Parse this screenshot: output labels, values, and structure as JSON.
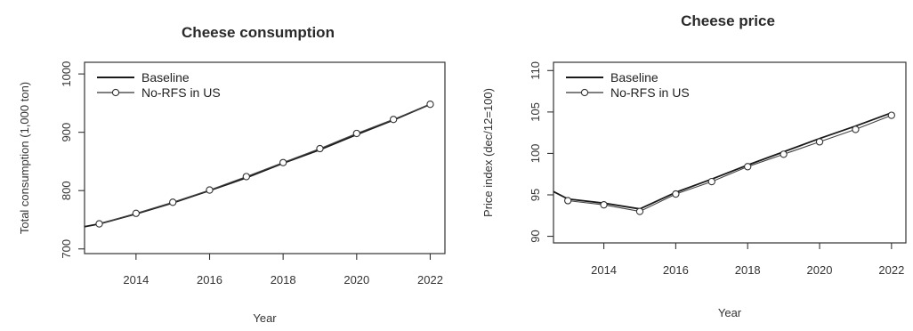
{
  "chart_data": [
    {
      "type": "line",
      "title": "Cheese consumption",
      "xlabel": "Year",
      "ylabel": "Total consumption (1,000 ton)",
      "xlim": [
        2012.6,
        2022.4
      ],
      "ylim": [
        692,
        1020
      ],
      "x_ticks": [
        2014,
        2016,
        2018,
        2020,
        2022
      ],
      "y_ticks": [
        700,
        800,
        900,
        1000
      ],
      "legend_position": "top-left",
      "grid": false,
      "series": [
        {
          "name": "Baseline",
          "marker": "none",
          "x": [
            2012.6,
            2013,
            2014,
            2015,
            2016,
            2017,
            2018,
            2019,
            2020,
            2021,
            2022
          ],
          "values": [
            738,
            743,
            760,
            779,
            800,
            822,
            847,
            870,
            896,
            921,
            948
          ]
        },
        {
          "name": "No-RFS in US",
          "marker": "circle",
          "x": [
            2013,
            2014,
            2015,
            2016,
            2017,
            2018,
            2019,
            2020,
            2021,
            2022
          ],
          "values": [
            743,
            761,
            780,
            801,
            824,
            848,
            872,
            898,
            922,
            948
          ]
        }
      ]
    },
    {
      "type": "line",
      "title": "Cheese price",
      "xlabel": "Year",
      "ylabel": "Price index (dec/12=100)",
      "xlim": [
        2012.6,
        2022.4
      ],
      "ylim": [
        89.2,
        111
      ],
      "x_ticks": [
        2014,
        2016,
        2018,
        2020,
        2022
      ],
      "y_ticks": [
        90,
        95,
        100,
        105,
        110
      ],
      "legend_position": "top-left",
      "grid": false,
      "series": [
        {
          "name": "Baseline",
          "marker": "none",
          "x": [
            2012.6,
            2013,
            2014,
            2015,
            2016,
            2017,
            2018,
            2019,
            2020,
            2021,
            2022
          ],
          "values": [
            95.4,
            94.5,
            94.0,
            93.3,
            95.3,
            96.9,
            98.6,
            100.2,
            101.8,
            103.3,
            104.9
          ]
        },
        {
          "name": "No-RFS in US",
          "marker": "circle",
          "x": [
            2013,
            2014,
            2015,
            2016,
            2017,
            2018,
            2019,
            2020,
            2021,
            2022
          ],
          "values": [
            94.3,
            93.8,
            93.0,
            95.1,
            96.6,
            98.4,
            99.9,
            101.4,
            102.9,
            104.6
          ]
        }
      ]
    }
  ]
}
